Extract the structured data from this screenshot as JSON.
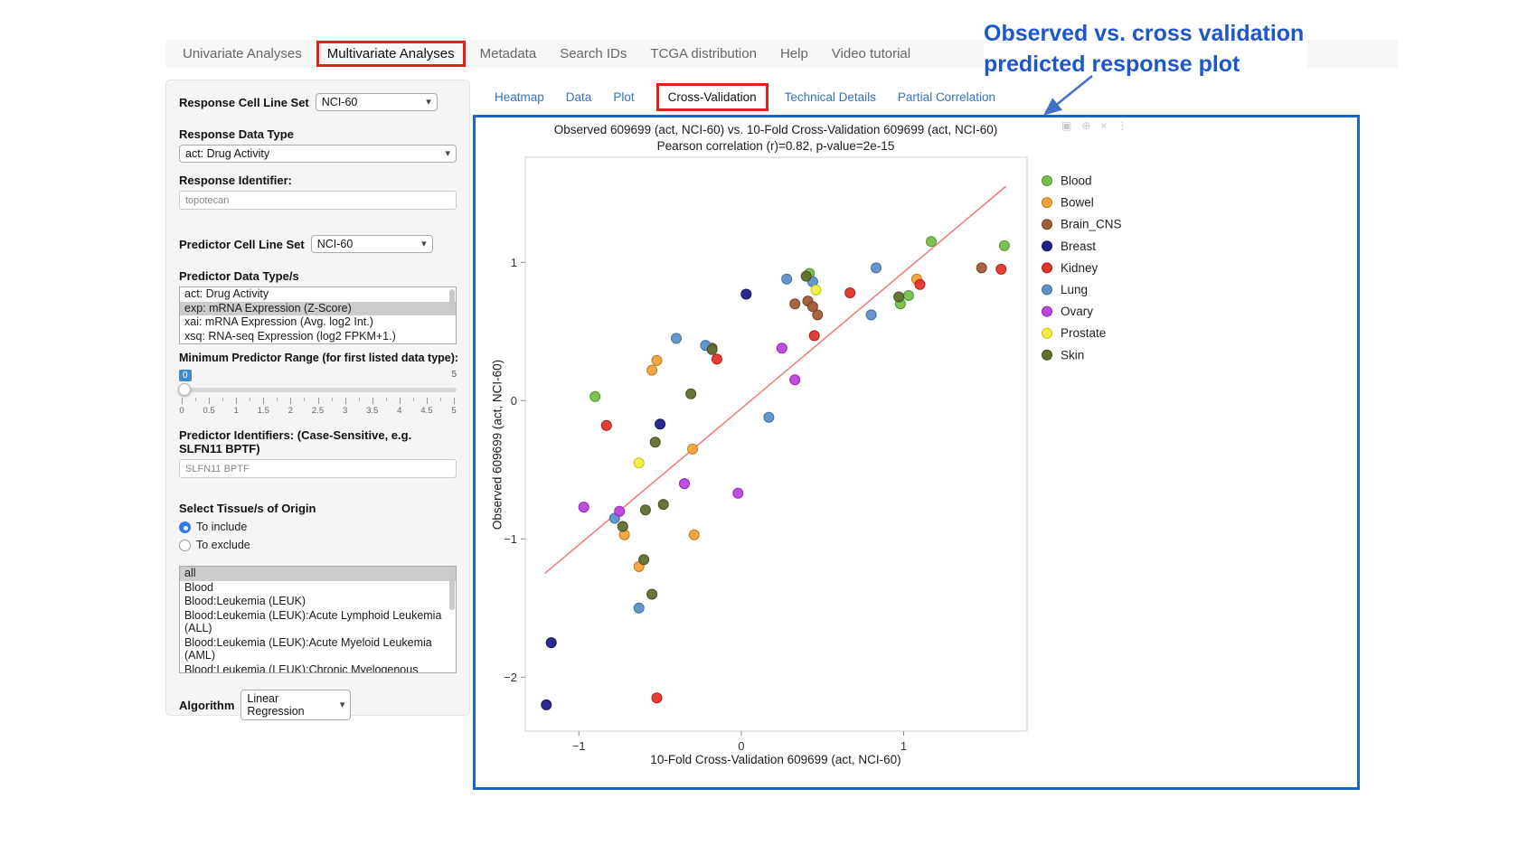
{
  "colors": {
    "highlight_red": "#e3201b",
    "plot_border_blue": "#1e63ce",
    "annotation_blue": "#1e56cc",
    "link_blue": "#3273b8"
  },
  "top_nav": {
    "items": [
      {
        "label": "Univariate Analyses",
        "active": false
      },
      {
        "label": "Multivariate Analyses",
        "active": true
      },
      {
        "label": "Metadata",
        "active": false
      },
      {
        "label": "Search IDs",
        "active": false
      },
      {
        "label": "TCGA distribution",
        "active": false
      },
      {
        "label": "Help",
        "active": false
      },
      {
        "label": "Video tutorial",
        "active": false
      }
    ]
  },
  "sidebar": {
    "response_cell_line_set": {
      "label": "Response Cell Line Set",
      "value": "NCI-60"
    },
    "response_data_type": {
      "label": "Response Data Type",
      "value": "act: Drug Activity"
    },
    "response_identifier": {
      "label": "Response Identifier:",
      "value": "topotecan"
    },
    "predictor_cell_line_set": {
      "label": "Predictor Cell Line Set",
      "value": "NCI-60"
    },
    "predictor_data_types": {
      "label": "Predictor Data Type/s",
      "options": [
        "act: Drug Activity",
        "exp: mRNA Expression (Z-Score)",
        "xai: mRNA Expression (Avg. log2 Int.)",
        "xsq: RNA-seq Expression (log2 FPKM+1.)"
      ],
      "selected": "exp: mRNA Expression (Z-Score)",
      "selected_index": 1
    },
    "min_predictor_range": {
      "label": "Minimum Predictor Range (for first listed data type):",
      "value": "0",
      "min": "0",
      "max": "5",
      "ticks": [
        "0",
        "0.5",
        "1",
        "1.5",
        "2",
        "2.5",
        "3",
        "3.5",
        "4",
        "4.5",
        "5"
      ]
    },
    "predictor_identifiers": {
      "label": "Predictor Identifiers: (Case-Sensitive, e.g. SLFN11 BPTF)",
      "value": "SLFN11 BPTF"
    },
    "tissue_origin": {
      "label": "Select Tissue/s of Origin",
      "options": [
        {
          "label": "To include",
          "selected": true
        },
        {
          "label": "To exclude",
          "selected": false
        }
      ]
    },
    "tissue_list": {
      "options": [
        "all",
        "Blood",
        "Blood:Leukemia (LEUK)",
        "Blood:Leukemia (LEUK):Acute Lymphoid Leukemia (ALL)",
        "Blood:Leukemia (LEUK):Acute Myeloid Leukemia (AML)",
        "Blood:Leukemia (LEUK):Chronic Myelogenous Leukemia (CML)"
      ],
      "selected": "all",
      "selected_index": 0
    },
    "algorithm": {
      "label": "Algorithm",
      "value": "Linear Regression"
    }
  },
  "subtabs": {
    "items": [
      {
        "label": "Heatmap",
        "active": false
      },
      {
        "label": "Data",
        "active": false
      },
      {
        "label": "Plot",
        "active": false
      },
      {
        "label": "Cross-Validation",
        "active": true
      },
      {
        "label": "Technical Details",
        "active": false
      },
      {
        "label": "Partial Correlation",
        "active": false
      }
    ]
  },
  "annotation": {
    "line1": "Observed vs. cross validation",
    "line2": "predicted response plot"
  },
  "modebar": {
    "icons": [
      {
        "name": "camera-icon",
        "glyph": "▣"
      },
      {
        "name": "zoom-icon",
        "glyph": "⊕"
      },
      {
        "name": "close-icon",
        "glyph": "×"
      },
      {
        "name": "more-icon",
        "glyph": "⋮"
      }
    ]
  },
  "chart_data": {
    "type": "scatter",
    "title": "Observed 609699 (act, NCI-60) vs. 10-Fold Cross-Validation 609699 (act, NCI-60)",
    "subtitle": "Pearson correlation (r)=0.82, p-value=2e-15",
    "xlabel": "10-Fold Cross-Validation 609699 (act, NCI-60)",
    "ylabel": "Observed 609699 (act, NCI-60)",
    "xlim": [
      -1.33,
      1.76
    ],
    "ylim": [
      -2.39,
      1.76
    ],
    "xticks": [
      -1,
      0,
      1
    ],
    "yticks": [
      -2,
      -1,
      0,
      1
    ],
    "grid": false,
    "legend_position": "right",
    "regression_line": {
      "color": "#f08080",
      "x": [
        -1.21,
        1.63
      ],
      "y": [
        -1.25,
        1.55
      ]
    },
    "series": [
      {
        "name": "Blood",
        "color": "#77be4b",
        "stroke": "#55942f",
        "points": [
          [
            -0.9,
            0.03
          ],
          [
            0.42,
            0.92
          ],
          [
            0.98,
            0.7
          ],
          [
            1.03,
            0.76
          ],
          [
            1.17,
            1.15
          ],
          [
            1.62,
            1.12
          ]
        ]
      },
      {
        "name": "Bowel",
        "color": "#f0a33a",
        "stroke": "#c57a1b",
        "points": [
          [
            -0.55,
            0.22
          ],
          [
            -0.52,
            0.29
          ],
          [
            -0.3,
            -0.35
          ],
          [
            -0.29,
            -0.97
          ],
          [
            -0.72,
            -0.97
          ],
          [
            -0.63,
            -1.2
          ],
          [
            1.08,
            0.88
          ]
        ]
      },
      {
        "name": "Brain_CNS",
        "color": "#a05c38",
        "stroke": "#7a4226",
        "points": [
          [
            0.33,
            0.7
          ],
          [
            0.41,
            0.72
          ],
          [
            0.47,
            0.62
          ],
          [
            1.48,
            0.96
          ],
          [
            -0.18,
            0.38
          ],
          [
            0.44,
            0.68
          ]
        ]
      },
      {
        "name": "Breast",
        "color": "#20208c",
        "stroke": "#14145f",
        "points": [
          [
            0.03,
            0.77
          ],
          [
            -0.5,
            -0.17
          ],
          [
            -1.17,
            -1.75
          ],
          [
            -1.2,
            -2.2
          ]
        ]
      },
      {
        "name": "Kidney",
        "color": "#e2352b",
        "stroke": "#ad1f17",
        "points": [
          [
            -0.83,
            -0.18
          ],
          [
            -0.15,
            0.3
          ],
          [
            0.45,
            0.47
          ],
          [
            0.67,
            0.78
          ],
          [
            1.1,
            0.84
          ],
          [
            1.6,
            0.95
          ],
          [
            -0.52,
            -2.15
          ]
        ]
      },
      {
        "name": "Lung",
        "color": "#5e91c8",
        "stroke": "#3d6fa6",
        "points": [
          [
            -0.4,
            0.45
          ],
          [
            -0.22,
            0.4
          ],
          [
            0.28,
            0.88
          ],
          [
            0.44,
            0.86
          ],
          [
            0.8,
            0.62
          ],
          [
            0.83,
            0.96
          ],
          [
            0.17,
            -0.12
          ],
          [
            -0.78,
            -0.85
          ],
          [
            -0.63,
            -1.5
          ]
        ]
      },
      {
        "name": "Ovary",
        "color": "#bc46dd",
        "stroke": "#9326b4",
        "points": [
          [
            -0.97,
            -0.77
          ],
          [
            -0.75,
            -0.8
          ],
          [
            -0.35,
            -0.6
          ],
          [
            0.25,
            0.38
          ],
          [
            0.33,
            0.15
          ],
          [
            -0.02,
            -0.67
          ]
        ]
      },
      {
        "name": "Prostate",
        "color": "#f1ee3e",
        "stroke": "#c2be1e",
        "points": [
          [
            -0.63,
            -0.45
          ],
          [
            0.46,
            0.8
          ]
        ]
      },
      {
        "name": "Skin",
        "color": "#606f2e",
        "stroke": "#45521e",
        "points": [
          [
            -0.18,
            0.37
          ],
          [
            -0.31,
            0.05
          ],
          [
            -0.53,
            -0.3
          ],
          [
            -0.48,
            -0.75
          ],
          [
            -0.59,
            -0.79
          ],
          [
            -0.73,
            -0.91
          ],
          [
            -0.6,
            -1.15
          ],
          [
            -0.55,
            -1.4
          ],
          [
            0.4,
            0.9
          ],
          [
            0.97,
            0.75
          ]
        ]
      }
    ]
  }
}
